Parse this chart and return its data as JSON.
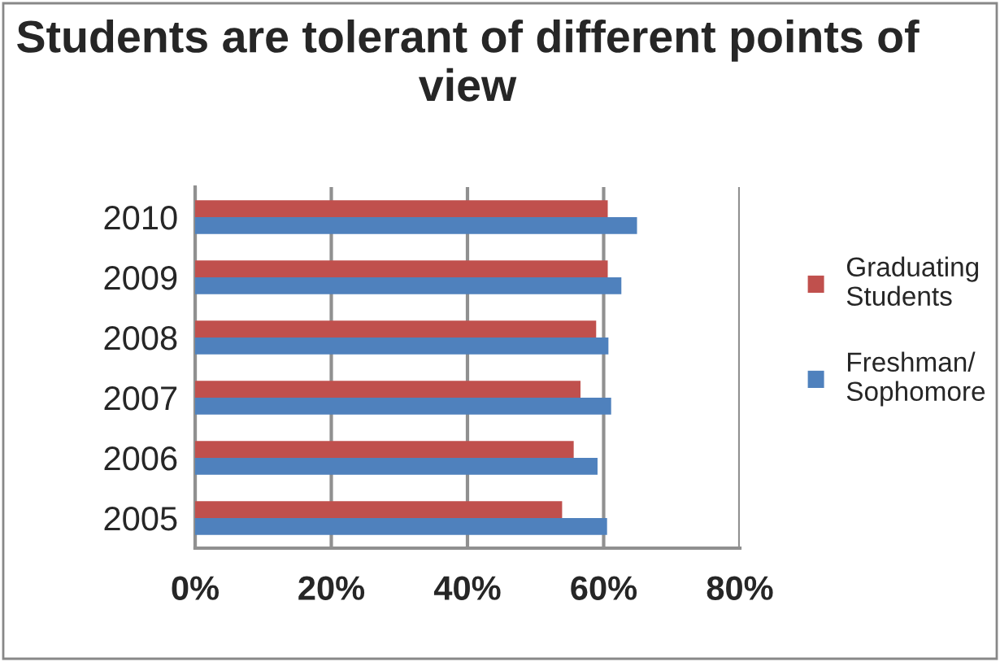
{
  "chart_data": {
    "type": "bar",
    "orientation": "horizontal",
    "title": "Students are tolerant of different points of view",
    "categories": [
      "2010",
      "2009",
      "2008",
      "2007",
      "2006",
      "2005"
    ],
    "series": [
      {
        "name": "Graduating\nStudents",
        "color": "#c0504d",
        "values": [
          60.6,
          60.6,
          58.9,
          56.6,
          55.6,
          53.9
        ]
      },
      {
        "name": "Freshman/\nSophomore",
        "color": "#4f81bd",
        "values": [
          64.9,
          62.6,
          60.7,
          61.1,
          59.1,
          60.5
        ]
      }
    ],
    "xlim": [
      0,
      80
    ],
    "xticks": [
      {
        "value": 0,
        "label": "0%"
      },
      {
        "value": 20,
        "label": "20%"
      },
      {
        "value": 40,
        "label": "40%"
      },
      {
        "value": 60,
        "label": "60%"
      },
      {
        "value": 80,
        "label": "80%"
      }
    ],
    "grid": "x",
    "legend": "right"
  }
}
